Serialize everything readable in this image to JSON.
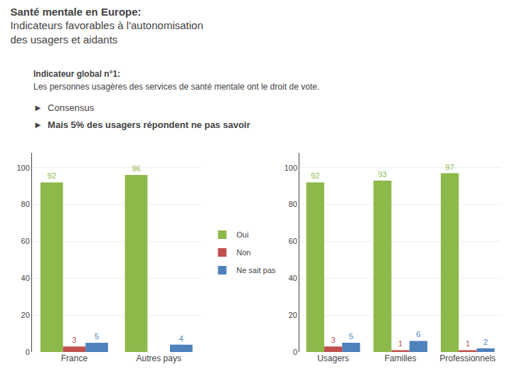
{
  "chart_data": [
    {
      "type": "bar",
      "title": [
        "Santé mentale en Europe:",
        "Indicateurs favorables à l'autonomisation",
        "des usagers et aidants"
      ],
      "subtitle": [
        "Indicateur global n°1:",
        "Les personnes usagères des services de santé mentale ont le droit de vote."
      ],
      "annotations": [
        "►  Consensus",
        "►  Mais 5% des usagers répondent ne pas savoir"
      ],
      "categories": [
        "France",
        "Autres pays"
      ],
      "series": [
        {
          "name": "Oui",
          "color": "#8db84a",
          "values": [
            92,
            96
          ]
        },
        {
          "name": "Non",
          "color": "#c0504d",
          "values": [
            3,
            0
          ],
          "value_labels": [
            "3",
            null
          ]
        },
        {
          "name": "Ne sait pas",
          "color": "#4f81bd",
          "values": [
            5,
            4
          ]
        }
      ],
      "ylim": [
        0,
        108
      ],
      "yticks": [
        0,
        20,
        40,
        60,
        80,
        100
      ],
      "grid": true,
      "data_labels": true,
      "legend": "right"
    },
    {
      "type": "bar",
      "categories": [
        "Usagers",
        "Familles",
        "Professionnels"
      ],
      "series": [
        {
          "name": "Oui",
          "color": "#8db84a",
          "values": [
            92,
            93,
            97
          ]
        },
        {
          "name": "Non",
          "color": "#c0504d",
          "values": [
            3,
            1,
            1
          ]
        },
        {
          "name": "Ne sait pas",
          "color": "#4f81bd",
          "values": [
            5,
            6,
            2
          ]
        }
      ],
      "ylim": [
        0,
        108
      ],
      "yticks": [
        0,
        20,
        40,
        60,
        80,
        100
      ],
      "grid": true,
      "data_labels": true
    }
  ]
}
